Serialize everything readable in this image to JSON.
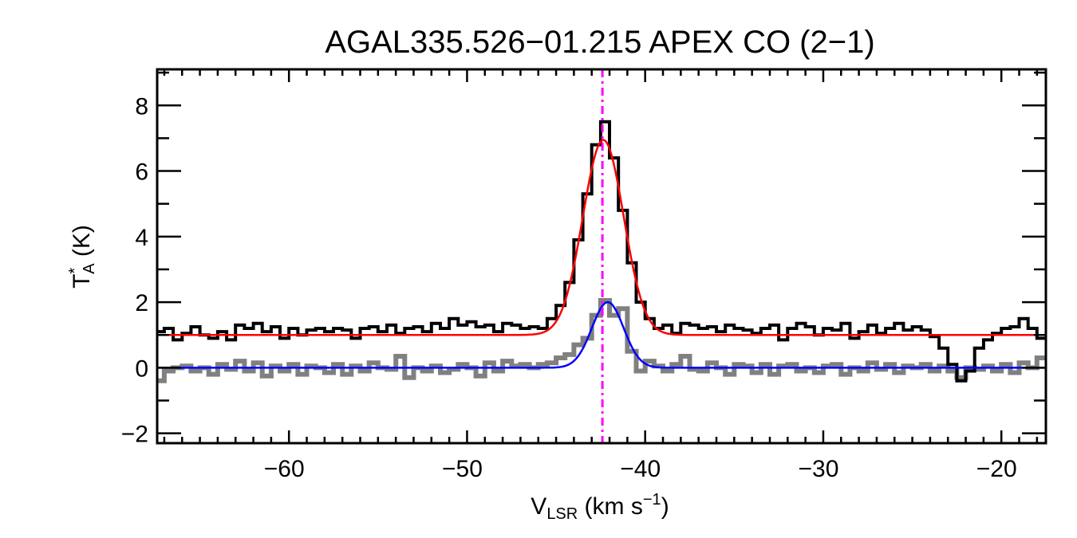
{
  "chart_data": {
    "type": "line",
    "title": "AGAL335.526−01.215  APEX CO (2−1)",
    "xlabel": {
      "main": "V",
      "sub": "LSR",
      "unit_pre": " (km s",
      "sup": "−1",
      "unit_post": ")"
    },
    "ylabel": {
      "main": "T",
      "sup": "*",
      "sub": "A",
      "unit": " (K)"
    },
    "xlim": [
      -67.4,
      -17.5
    ],
    "ylim": [
      -2.3,
      9.1
    ],
    "xticks": [
      -60,
      -50,
      -40,
      -30,
      -20
    ],
    "xtick_labels": [
      "−60",
      "−50",
      "−40",
      "−30",
      "−20"
    ],
    "yticks": [
      -2,
      0,
      2,
      4,
      6,
      8
    ],
    "ytick_labels": [
      "−2",
      "0",
      "2",
      "4",
      "6",
      "8"
    ],
    "grid": false,
    "x_start": -67.25,
    "x_step": 0.5,
    "series": [
      {
        "style": "histogram",
        "color": "#000000",
        "values": [
          1.1,
          1.2,
          0.85,
          1.05,
          1.25,
          1.0,
          0.9,
          1.1,
          0.85,
          1.3,
          1.2,
          1.35,
          1.1,
          1.25,
          0.9,
          1.2,
          1.0,
          1.15,
          1.2,
          1.1,
          1.2,
          1.15,
          0.9,
          1.2,
          1.25,
          1.1,
          1.3,
          1.05,
          1.2,
          1.25,
          1.1,
          1.35,
          1.2,
          1.5,
          1.3,
          1.4,
          1.25,
          1.3,
          1.1,
          1.35,
          1.3,
          1.2,
          1.25,
          1.2,
          1.5,
          1.9,
          2.6,
          3.9,
          5.3,
          6.8,
          7.5,
          6.4,
          4.8,
          3.2,
          2.0,
          1.5,
          1.2,
          1.3,
          1.05,
          1.35,
          1.3,
          1.2,
          1.25,
          1.1,
          1.3,
          1.2,
          1.15,
          1.05,
          1.2,
          1.3,
          0.85,
          1.2,
          1.35,
          1.25,
          1.0,
          1.2,
          1.15,
          1.35,
          0.9,
          1.1,
          1.3,
          1.05,
          1.2,
          1.35,
          1.15,
          1.25,
          1.15,
          0.95,
          0.6,
          0.1,
          -0.4,
          -0.1,
          0.6,
          0.85,
          1.05,
          1.2,
          1.25,
          1.5,
          1.2,
          0.9
        ]
      },
      {
        "style": "histogram",
        "color": "#808080",
        "values": [
          -0.4,
          -0.1,
          0.0,
          0.05,
          -0.1,
          0.0,
          -0.2,
          0.1,
          -0.05,
          0.2,
          -0.1,
          0.15,
          -0.25,
          0.05,
          -0.1,
          0.1,
          -0.2,
          0.05,
          0.0,
          -0.15,
          0.1,
          -0.2,
          0.05,
          -0.1,
          0.15,
          0.0,
          -0.05,
          0.35,
          -0.3,
          0.0,
          -0.1,
          0.05,
          -0.15,
          -0.05,
          0.1,
          0.0,
          -0.25,
          0.15,
          -0.1,
          0.2,
          0.05,
          0.1,
          0.0,
          0.1,
          0.15,
          0.3,
          0.4,
          0.7,
          0.9,
          1.6,
          2.05,
          1.6,
          1.8,
          0.5,
          -0.1,
          0.2,
          0.05,
          -0.1,
          0.1,
          0.35,
          -0.05,
          -0.1,
          0.15,
          0.0,
          -0.2,
          0.1,
          0.05,
          -0.15,
          0.1,
          -0.2,
          0.05,
          0.1,
          -0.1,
          0.0,
          -0.15,
          0.05,
          0.1,
          -0.2,
          0.0,
          -0.1,
          0.15,
          -0.05,
          0.1,
          -0.15,
          0.05,
          0.0,
          0.1,
          -0.1,
          0.05,
          -0.1,
          -0.3,
          0.0,
          -0.05,
          0.05,
          -0.1,
          0.1,
          -0.15,
          0.15,
          0.0,
          0.3
        ]
      },
      {
        "style": "gaussian-fit",
        "color": "#ff0000",
        "baseline": 1.0,
        "amplitude": 5.95,
        "center": -42.35,
        "fwhm": 2.7
      },
      {
        "style": "gaussian-fit",
        "color": "#0000ff",
        "baseline": 0.0,
        "amplitude": 2.0,
        "center": -42.1,
        "fwhm": 2.1
      }
    ],
    "vline": {
      "x": -42.4,
      "color": "#ff00ff",
      "style": "dash-dot"
    }
  }
}
